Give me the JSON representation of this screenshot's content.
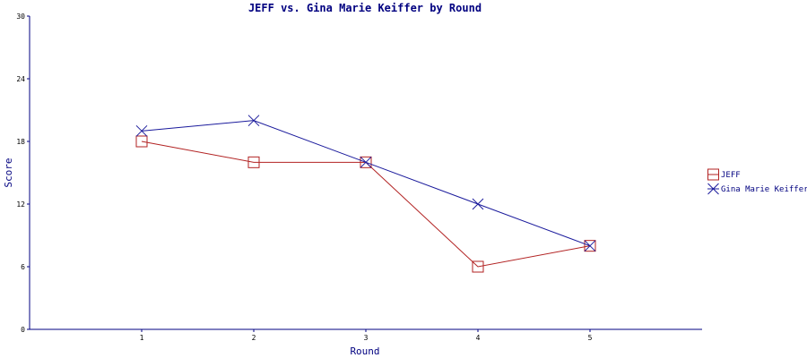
{
  "chart_data": {
    "type": "line",
    "title": "JEFF vs. Gina Marie Keiffer by Round",
    "xlabel": "Round",
    "ylabel": "Score",
    "categories": [
      "1",
      "2",
      "3",
      "4",
      "5"
    ],
    "x": [
      1,
      2,
      3,
      4,
      5
    ],
    "xlim": [
      0,
      6
    ],
    "ylim": [
      0,
      30
    ],
    "yticks": [
      0,
      6,
      12,
      18,
      24,
      30
    ],
    "grid": false,
    "legend_position": "right",
    "series": [
      {
        "name": "JEFF",
        "values": [
          18,
          16,
          16,
          6,
          8
        ],
        "color": "#b22222",
        "marker": "square"
      },
      {
        "name": "Gina Marie Keiffer",
        "values": [
          19,
          20,
          16,
          12,
          8
        ],
        "color": "#1a1a9c",
        "marker": "x"
      }
    ]
  },
  "colors": {
    "axis": "#000080"
  }
}
